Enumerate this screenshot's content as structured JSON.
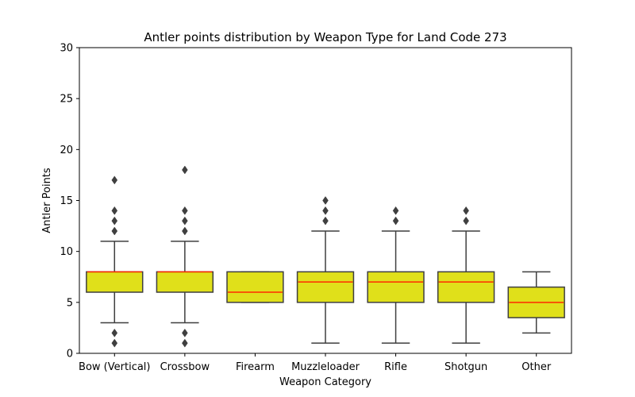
{
  "chart_data": {
    "type": "box",
    "title": "Antler points distribution by Weapon Type for Land Code 273",
    "xlabel": "Weapon Category",
    "ylabel": "Antler Points",
    "ylim": [
      0,
      30
    ],
    "yticks": [
      0,
      5,
      10,
      15,
      20,
      25,
      30
    ],
    "categories": [
      "Bow (Vertical)",
      "Crossbow",
      "Firearm",
      "Muzzleloader",
      "Rifle",
      "Shotgun",
      "Other"
    ],
    "boxes": [
      {
        "category": "Bow (Vertical)",
        "whisker_low": 3,
        "q1": 6,
        "median": 8,
        "q3": 8,
        "whisker_high": 11,
        "outliers": [
          1,
          2,
          12,
          13,
          14,
          17
        ]
      },
      {
        "category": "Crossbow",
        "whisker_low": 3,
        "q1": 6,
        "median": 8,
        "q3": 8,
        "whisker_high": 11,
        "outliers": [
          1,
          2,
          12,
          13,
          14,
          18
        ]
      },
      {
        "category": "Firearm",
        "whisker_low": 5,
        "q1": 5,
        "median": 6,
        "q3": 8,
        "whisker_high": 8,
        "outliers": []
      },
      {
        "category": "Muzzleloader",
        "whisker_low": 1,
        "q1": 5,
        "median": 7,
        "q3": 8,
        "whisker_high": 12,
        "outliers": [
          13,
          14,
          15
        ]
      },
      {
        "category": "Rifle",
        "whisker_low": 1,
        "q1": 5,
        "median": 7,
        "q3": 8,
        "whisker_high": 12,
        "outliers": [
          13,
          14
        ]
      },
      {
        "category": "Shotgun",
        "whisker_low": 1,
        "q1": 5,
        "median": 7,
        "q3": 8,
        "whisker_high": 12,
        "outliers": [
          13,
          14
        ]
      },
      {
        "category": "Other",
        "whisker_low": 2,
        "q1": 3.5,
        "median": 5,
        "q3": 6.5,
        "whisker_high": 8,
        "outliers": []
      }
    ],
    "colors": {
      "box_fill": "#e0e01a",
      "box_edge": "#3f3f3f",
      "median": "#ff2a00",
      "whisker": "#3f3f3f",
      "outlier": "#3f3f3f"
    },
    "grid": false,
    "legend": "none"
  }
}
